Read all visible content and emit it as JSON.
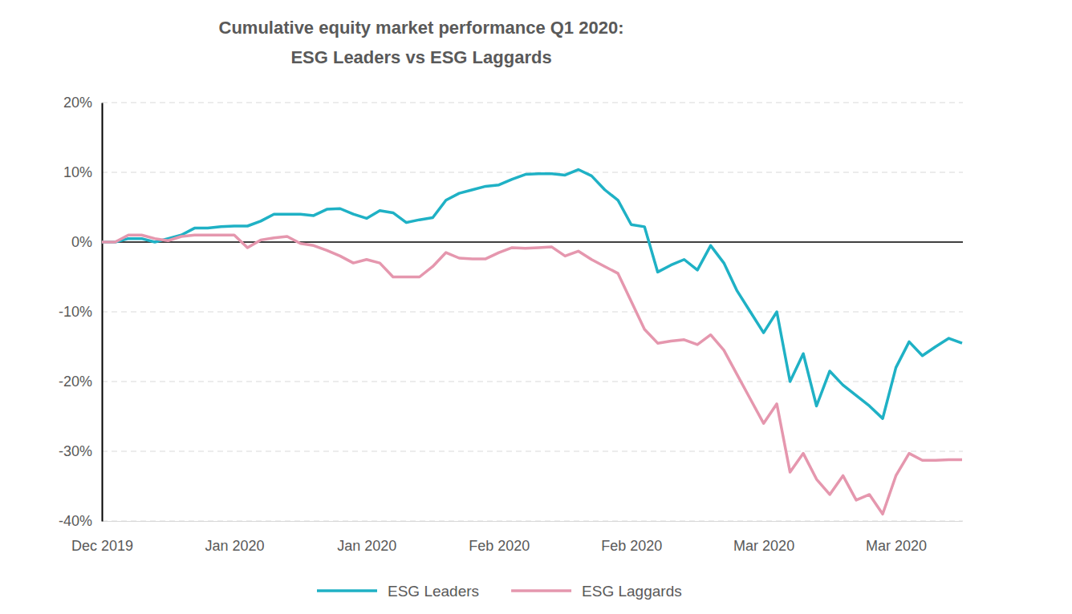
{
  "chart_data": {
    "type": "line",
    "title": [
      "Cumulative equity market performance Q1 2020:",
      "ESG Leaders vs ESG Laggards"
    ],
    "categories": [
      "Dec 2019",
      null,
      null,
      null,
      null,
      null,
      null,
      null,
      null,
      null,
      "Jan 2020",
      null,
      null,
      null,
      null,
      null,
      null,
      null,
      null,
      null,
      "Jan 2020",
      null,
      null,
      null,
      null,
      null,
      null,
      null,
      null,
      null,
      "Feb 2020",
      null,
      null,
      null,
      null,
      null,
      null,
      null,
      null,
      null,
      "Feb 2020",
      null,
      null,
      null,
      null,
      null,
      null,
      null,
      null,
      null,
      "Mar 2020",
      null,
      null,
      null,
      null,
      null,
      null,
      null,
      null,
      null,
      "Mar 2020",
      null,
      null,
      null,
      null,
      null
    ],
    "series": [
      {
        "name": "ESG Leaders",
        "color": "#1fb1c5",
        "values": [
          0,
          0,
          0.5,
          0.5,
          0,
          0.5,
          1,
          2,
          2,
          2.2,
          2.3,
          2.3,
          3,
          4,
          4,
          4,
          3.8,
          4.7,
          4.8,
          4,
          3.4,
          4.5,
          4.2,
          2.8,
          3.2,
          3.5,
          6,
          7,
          7.5,
          8,
          8.2,
          9,
          9.7,
          9.8,
          9.8,
          9.6,
          10.4,
          9.5,
          7.5,
          6,
          2.5,
          2.2,
          -4.3,
          -3.3,
          -2.5,
          -4,
          -0.5,
          -3,
          -7,
          -10,
          -13,
          -10,
          -20,
          -16,
          -23.5,
          -18.5,
          -20.5,
          -22,
          -23.5,
          -25.3,
          -18,
          -14.3,
          -16.3,
          -15,
          -13.8,
          -14.5
        ]
      },
      {
        "name": "ESG Laggards",
        "color": "#e597ae",
        "values": [
          0,
          0,
          1,
          1,
          0.5,
          0.2,
          0.8,
          1,
          1,
          1,
          1,
          -0.8,
          0.3,
          0.6,
          0.8,
          -0.2,
          -0.5,
          -1.2,
          -2,
          -3,
          -2.5,
          -3,
          -5,
          -5,
          -5,
          -3.5,
          -1.5,
          -2.3,
          -2.4,
          -2.4,
          -1.5,
          -0.8,
          -0.9,
          -0.8,
          -0.7,
          -2,
          -1.3,
          -2.5,
          -3.5,
          -4.5,
          -8.5,
          -12.5,
          -14.5,
          -14.2,
          -14,
          -14.7,
          -13.3,
          -15.5,
          -19,
          -22.5,
          -26,
          -23.2,
          -33,
          -30.3,
          -34,
          -36.2,
          -33.5,
          -37,
          -36.2,
          -39,
          -33.5,
          -30.3,
          -31.3,
          -31.3,
          -31.2,
          -31.2
        ]
      }
    ],
    "ylim": [
      -40,
      20
    ],
    "yticks": [
      {
        "value": -40,
        "label": "-40%"
      },
      {
        "value": -30,
        "label": "-30%"
      },
      {
        "value": -20,
        "label": "-20%"
      },
      {
        "value": -10,
        "label": "-10%"
      },
      {
        "value": 0,
        "label": "0%"
      },
      {
        "value": 10,
        "label": "10%"
      },
      {
        "value": 20,
        "label": "20%"
      }
    ],
    "grid": true,
    "legend": "bottom",
    "marker": "none",
    "line_style": "solid"
  }
}
